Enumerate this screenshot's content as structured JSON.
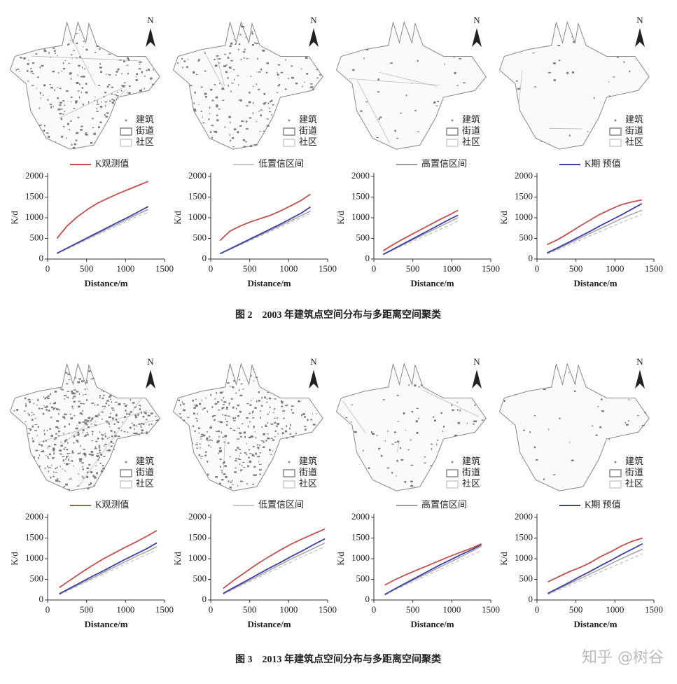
{
  "figures": [
    {
      "caption": "图 2　2003 年建筑点空间分布与多距离空间聚类",
      "maps": [
        {
          "north": "N",
          "legend": [
            "建筑",
            "街道",
            "社区"
          ]
        },
        {
          "north": "N",
          "legend": [
            "建筑",
            "街道",
            "社区"
          ]
        },
        {
          "north": "N",
          "legend": [
            "建筑",
            "街道",
            "社区"
          ]
        },
        {
          "north": "N",
          "legend": [
            "建筑",
            "街道",
            "社区"
          ]
        }
      ]
    },
    {
      "caption": "图 3　2013 年建筑点空间分布与多距离空间聚类",
      "maps": [
        {
          "north": "N",
          "legend": [
            "建筑",
            "街道",
            "社区"
          ]
        },
        {
          "north": "N",
          "legend": [
            "建筑",
            "街道",
            "社区"
          ]
        },
        {
          "north": "N",
          "legend": [
            "建筑",
            "街道",
            "社区"
          ]
        },
        {
          "north": "N",
          "legend": [
            "建筑",
            "街道",
            "社区"
          ]
        }
      ]
    }
  ],
  "chart_data": [
    {
      "type": "line",
      "xlabel": "Distance/m",
      "ylabel": "K/d",
      "legend": {
        "name": "K观测值",
        "color": "#c0504d"
      },
      "xlim": [
        0,
        1500
      ],
      "ylim": [
        0,
        2000
      ],
      "xticks": [
        0,
        500,
        1000,
        1500
      ],
      "yticks": [
        0,
        500,
        1000,
        1500,
        2000
      ],
      "x": [
        120,
        250,
        380,
        510,
        640,
        770,
        900,
        1030,
        1160,
        1290
      ],
      "series": [
        {
          "color": "#c0504d",
          "values": [
            500,
            800,
            1020,
            1200,
            1350,
            1470,
            1580,
            1680,
            1780,
            1880
          ]
        },
        {
          "color": "#3f3f9f",
          "values": [
            140,
            265,
            390,
            515,
            640,
            765,
            890,
            1010,
            1140,
            1270
          ]
        },
        {
          "color": "#9e9e9e",
          "values": [
            135,
            255,
            375,
            495,
            615,
            735,
            850,
            970,
            1090,
            1200
          ]
        },
        {
          "color": "#c8c8c8",
          "dash": true,
          "values": [
            125,
            240,
            355,
            470,
            585,
            700,
            810,
            925,
            1040,
            1130
          ]
        }
      ]
    },
    {
      "type": "line",
      "xlabel": "Distance/m",
      "ylabel": "K/d",
      "legend": {
        "name": "低置信区间",
        "color": "#c8c8c8"
      },
      "xlim": [
        0,
        1500
      ],
      "ylim": [
        0,
        2000
      ],
      "xticks": [
        0,
        500,
        1000,
        1500
      ],
      "yticks": [
        0,
        500,
        1000,
        1500,
        2000
      ],
      "x": [
        120,
        250,
        380,
        510,
        640,
        770,
        900,
        1030,
        1160,
        1280
      ],
      "series": [
        {
          "color": "#c0504d",
          "values": [
            450,
            680,
            800,
            900,
            980,
            1060,
            1170,
            1290,
            1420,
            1570
          ]
        },
        {
          "color": "#3f3f9f",
          "values": [
            130,
            250,
            370,
            490,
            610,
            730,
            850,
            980,
            1110,
            1260
          ]
        },
        {
          "color": "#9e9e9e",
          "values": [
            125,
            240,
            355,
            470,
            585,
            700,
            815,
            930,
            1050,
            1160
          ]
        },
        {
          "color": "#c8c8c8",
          "dash": true,
          "values": [
            120,
            230,
            340,
            450,
            560,
            670,
            780,
            890,
            1000,
            1110
          ]
        }
      ]
    },
    {
      "type": "line",
      "xlabel": "Distance/m",
      "ylabel": "K/d",
      "legend": {
        "name": "高置信区间",
        "color": "#9e9e9e"
      },
      "xlim": [
        0,
        1500
      ],
      "ylim": [
        0,
        2000
      ],
      "xticks": [
        0,
        500,
        1000,
        1500
      ],
      "yticks": [
        0,
        500,
        1000,
        1500,
        2000
      ],
      "x": [
        120,
        240,
        360,
        480,
        600,
        720,
        840,
        960,
        1080
      ],
      "series": [
        {
          "color": "#c0504d",
          "values": [
            200,
            340,
            470,
            590,
            710,
            830,
            950,
            1060,
            1180
          ]
        },
        {
          "color": "#3f3f9f",
          "values": [
            110,
            230,
            350,
            470,
            590,
            710,
            830,
            950,
            1060
          ]
        },
        {
          "color": "#9e9e9e",
          "values": [
            120,
            230,
            340,
            450,
            560,
            670,
            780,
            890,
            1000
          ]
        },
        {
          "color": "#c8c8c8",
          "dash": true,
          "values": [
            110,
            210,
            310,
            410,
            510,
            610,
            710,
            810,
            920
          ]
        }
      ]
    },
    {
      "type": "line",
      "xlabel": "Distance/m",
      "ylabel": "K/d",
      "legend": {
        "name": "K期  预值",
        "color": "#3f3f9f"
      },
      "xlim": [
        0,
        1500
      ],
      "ylim": [
        0,
        2000
      ],
      "xticks": [
        0,
        500,
        1000,
        1500
      ],
      "yticks": [
        0,
        500,
        1000,
        1500,
        2000
      ],
      "x": [
        130,
        265,
        400,
        535,
        670,
        805,
        940,
        1075,
        1210,
        1345
      ],
      "series": [
        {
          "color": "#c0504d",
          "values": [
            350,
            470,
            620,
            780,
            930,
            1080,
            1200,
            1310,
            1380,
            1430
          ]
        },
        {
          "color": "#3f3f9f",
          "values": [
            150,
            270,
            400,
            530,
            660,
            800,
            930,
            1060,
            1200,
            1340
          ]
        },
        {
          "color": "#9e9e9e",
          "values": [
            140,
            250,
            370,
            490,
            610,
            730,
            850,
            970,
            1080,
            1180
          ]
        },
        {
          "color": "#c8c8c8",
          "dash": true,
          "values": [
            120,
            220,
            330,
            440,
            550,
            660,
            770,
            880,
            980,
            1080
          ]
        }
      ]
    },
    {
      "type": "line",
      "xlabel": "Distance/m",
      "ylabel": "K/d",
      "legend": {
        "name": "K观测值",
        "color": "#c0504d"
      },
      "xlim": [
        0,
        1500
      ],
      "ylim": [
        0,
        2000
      ],
      "xticks": [
        0,
        500,
        1000,
        1500
      ],
      "yticks": [
        0,
        500,
        1000,
        1500,
        2000
      ],
      "x": [
        150,
        290,
        430,
        570,
        710,
        850,
        990,
        1130,
        1270,
        1400
      ],
      "series": [
        {
          "color": "#c0504d",
          "values": [
            300,
            480,
            660,
            830,
            990,
            1130,
            1270,
            1400,
            1540,
            1680
          ]
        },
        {
          "color": "#3f3f9f",
          "values": [
            150,
            290,
            430,
            570,
            700,
            840,
            980,
            1110,
            1240,
            1380
          ]
        },
        {
          "color": "#9e9e9e",
          "values": [
            140,
            270,
            400,
            530,
            660,
            790,
            920,
            1050,
            1170,
            1290
          ]
        },
        {
          "color": "#c8c8c8",
          "dash": true,
          "values": [
            130,
            250,
            380,
            500,
            620,
            740,
            860,
            980,
            1100,
            1210
          ]
        }
      ]
    },
    {
      "type": "line",
      "xlabel": "Distance/m",
      "ylabel": "K/d",
      "legend": {
        "name": "低置信区间",
        "color": "#c8c8c8"
      },
      "xlim": [
        0,
        1500
      ],
      "ylim": [
        0,
        2000
      ],
      "xticks": [
        0,
        500,
        1000,
        1500
      ],
      "yticks": [
        0,
        500,
        1000,
        1500,
        2000
      ],
      "x": [
        160,
        305,
        450,
        595,
        740,
        885,
        1030,
        1175,
        1320,
        1465
      ],
      "series": [
        {
          "color": "#c0504d",
          "values": [
            280,
            490,
            680,
            870,
            1040,
            1200,
            1350,
            1480,
            1600,
            1720
          ]
        },
        {
          "color": "#3f3f9f",
          "values": [
            160,
            310,
            460,
            610,
            760,
            900,
            1050,
            1190,
            1340,
            1480
          ]
        },
        {
          "color": "#9e9e9e",
          "values": [
            150,
            290,
            430,
            570,
            710,
            850,
            990,
            1120,
            1250,
            1380
          ]
        },
        {
          "color": "#c8c8c8",
          "dash": true,
          "values": [
            140,
            270,
            400,
            530,
            660,
            790,
            920,
            1050,
            1170,
            1290
          ]
        }
      ]
    },
    {
      "type": "line",
      "xlabel": "Distance/m",
      "ylabel": "K/d",
      "legend": {
        "name": "高置信区间",
        "color": "#9e9e9e"
      },
      "xlim": [
        0,
        1500
      ],
      "ylim": [
        0,
        2000
      ],
      "xticks": [
        0,
        500,
        1000,
        1500
      ],
      "yticks": [
        0,
        500,
        1000,
        1500,
        2000
      ],
      "x": [
        140,
        280,
        420,
        560,
        700,
        840,
        980,
        1120,
        1260,
        1380
      ],
      "series": [
        {
          "color": "#c0504d",
          "values": [
            360,
            500,
            620,
            730,
            840,
            950,
            1060,
            1160,
            1260,
            1360
          ]
        },
        {
          "color": "#3f3f9f",
          "values": [
            130,
            280,
            420,
            560,
            700,
            840,
            970,
            1100,
            1220,
            1340
          ]
        },
        {
          "color": "#9e9e9e",
          "values": [
            140,
            270,
            400,
            530,
            660,
            790,
            920,
            1050,
            1180,
            1300
          ]
        },
        {
          "color": "#c8c8c8",
          "dash": true,
          "values": [
            120,
            250,
            370,
            490,
            610,
            730,
            860,
            980,
            1090,
            1200
          ]
        }
      ]
    },
    {
      "type": "line",
      "xlabel": "Distance/m",
      "ylabel": "K/d",
      "legend": {
        "name": "K期  预值",
        "color": "#3f3f9f"
      },
      "xlim": [
        0,
        1500
      ],
      "ylim": [
        0,
        2000
      ],
      "xticks": [
        0,
        500,
        1000,
        1500
      ],
      "yticks": [
        0,
        500,
        1000,
        1500,
        2000
      ],
      "x": [
        140,
        275,
        410,
        545,
        680,
        815,
        950,
        1085,
        1220,
        1355
      ],
      "series": [
        {
          "color": "#c0504d",
          "values": [
            440,
            560,
            680,
            780,
            900,
            1050,
            1170,
            1310,
            1420,
            1500
          ]
        },
        {
          "color": "#3f3f9f",
          "values": [
            160,
            290,
            420,
            560,
            690,
            830,
            960,
            1100,
            1230,
            1360
          ]
        },
        {
          "color": "#9e9e9e",
          "values": [
            150,
            270,
            390,
            510,
            630,
            750,
            880,
            1000,
            1120,
            1230
          ]
        },
        {
          "color": "#c8c8c8",
          "dash": true,
          "values": [
            130,
            240,
            350,
            460,
            570,
            680,
            790,
            900,
            1010,
            1110
          ]
        }
      ]
    }
  ],
  "watermark": "知乎 @树谷"
}
